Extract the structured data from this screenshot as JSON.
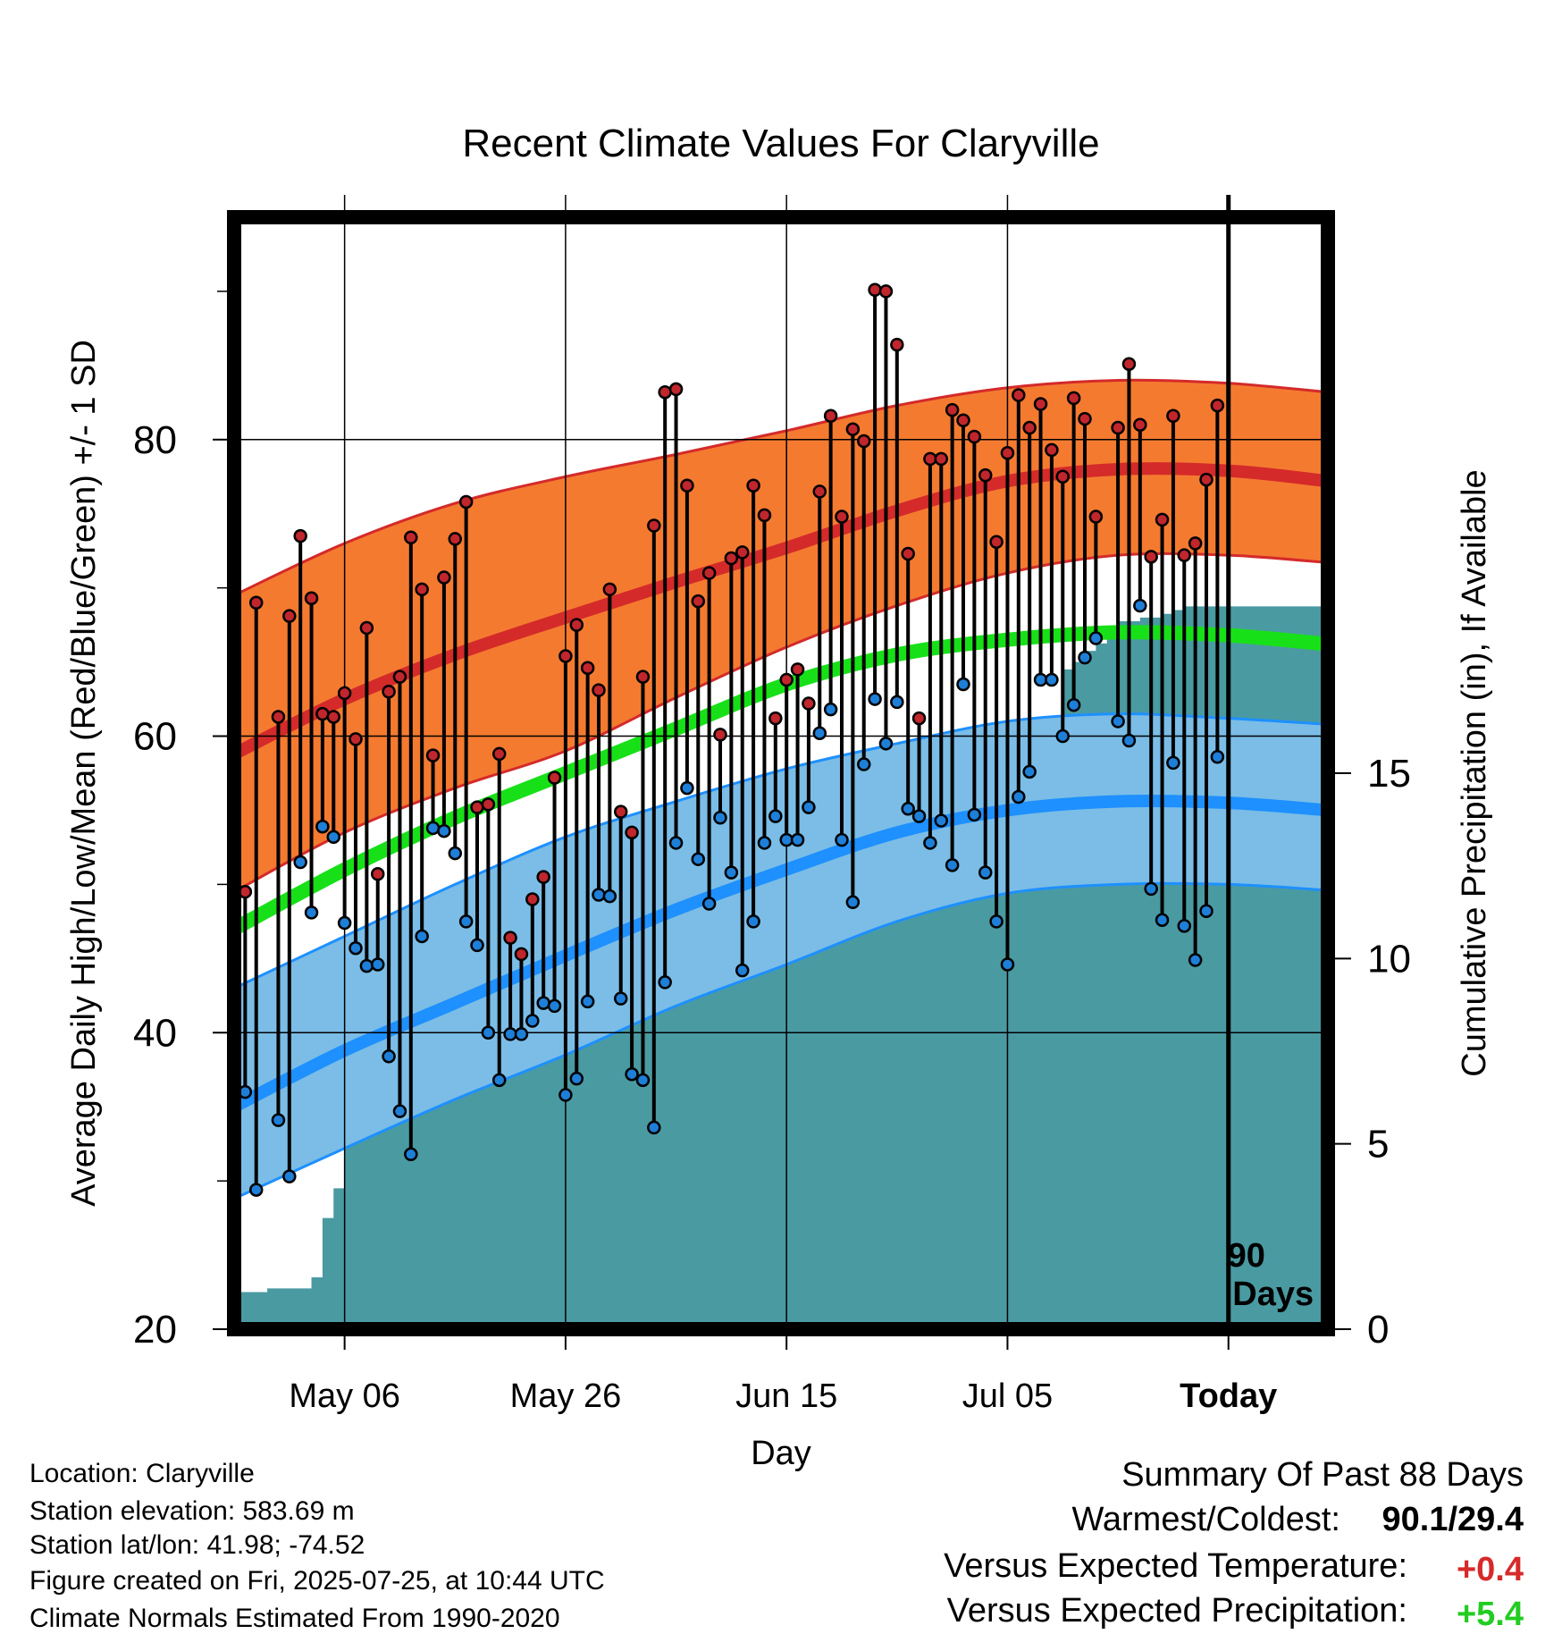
{
  "chart_data": {
    "type": "line",
    "title": "Recent Climate Values For Claryville",
    "ylabel_left": "Average Daily High/Low/Mean (Red/Blue/Green) +/- 1 SD",
    "ylabel_right": "Cumulative Precipitation (in), If Available",
    "xlabel": "Day",
    "x_tick_labels": [
      "May 06",
      "May 26",
      "Jun 15",
      "Jul 05",
      "Today"
    ],
    "x_tick_days": [
      10,
      30,
      50,
      70,
      90
    ],
    "x_range_days": [
      0,
      99
    ],
    "ylim_left": [
      20,
      95
    ],
    "y_ticks_left": [
      20,
      40,
      60,
      80
    ],
    "ylim_right": [
      0,
      30
    ],
    "y_ticks_right": [
      0,
      5,
      10,
      15
    ],
    "today_marker_label": [
      "90",
      "Days"
    ],
    "colors": {
      "high_band": "#f47a30",
      "high_mean": "#d42a2a",
      "mean": "#18e018",
      "low_band": "#7bbde6",
      "low_mean": "#1e90ff",
      "precip": "#4a9aa2",
      "high_dot": "#c0262c",
      "low_dot": "#1e7fd8"
    },
    "normals": {
      "days": [
        0,
        10,
        20,
        30,
        40,
        50,
        60,
        70,
        80,
        90,
        99
      ],
      "high_upper": [
        69.5,
        73.0,
        75.7,
        77.5,
        79.0,
        80.6,
        82.3,
        83.5,
        84.0,
        83.8,
        83.2
      ],
      "high_mean": [
        58.8,
        62.5,
        65.5,
        68.0,
        70.4,
        72.7,
        75.2,
        77.2,
        78.0,
        77.9,
        77.2
      ],
      "high_lower": [
        49.5,
        53.5,
        56.5,
        59.0,
        62.6,
        66.0,
        68.8,
        71.0,
        72.2,
        72.2,
        71.7
      ],
      "mean": [
        47.0,
        51.0,
        54.5,
        57.5,
        60.5,
        63.5,
        65.5,
        66.5,
        67.0,
        66.8,
        66.2
      ],
      "low_upper": [
        43.0,
        46.5,
        50.0,
        53.2,
        55.6,
        57.8,
        59.5,
        61.0,
        61.5,
        61.2,
        60.8
      ],
      "low_mean": [
        35.0,
        38.8,
        42.0,
        45.2,
        48.3,
        51.0,
        53.5,
        55.0,
        55.6,
        55.5,
        55.0
      ],
      "low_lower": [
        28.8,
        32.2,
        35.5,
        38.5,
        41.8,
        44.6,
        47.5,
        49.4,
        50.0,
        50.0,
        49.6
      ]
    },
    "series": [
      {
        "name": "Daily High",
        "days": [
          0,
          1,
          2,
          4,
          5,
          6,
          7,
          8,
          9,
          10,
          11,
          12,
          13,
          14,
          15,
          16,
          17,
          18,
          19,
          20,
          21,
          22,
          23,
          24,
          25,
          26,
          27,
          28,
          29,
          30,
          31,
          32,
          33,
          34,
          35,
          36,
          37,
          38,
          39,
          40,
          41,
          42,
          43,
          44,
          45,
          46,
          47,
          48,
          49,
          50,
          51,
          52,
          53,
          54,
          55,
          56,
          57,
          58,
          59,
          60,
          61,
          62,
          63,
          64,
          65,
          66,
          67,
          68,
          69,
          70,
          71,
          72,
          73,
          74,
          75,
          76,
          77,
          78,
          79,
          80,
          81,
          82,
          83,
          84,
          85,
          86,
          87,
          88,
          89
        ],
        "values": [
          66.0,
          49.5,
          69.0,
          61.3,
          68.1,
          73.5,
          69.3,
          61.5,
          61.3,
          62.9,
          59.8,
          67.3,
          50.7,
          63.0,
          64.0,
          73.4,
          69.9,
          58.7,
          70.7,
          73.3,
          75.8,
          55.2,
          55.4,
          58.8,
          46.4,
          45.3,
          49.0,
          50.5,
          57.2,
          65.4,
          67.5,
          64.6,
          63.1,
          69.9,
          54.9,
          53.5,
          64.0,
          74.2,
          83.2,
          83.4,
          76.9,
          69.1,
          71.0,
          60.1,
          72.0,
          72.4,
          76.9,
          74.9,
          61.2,
          63.8,
          64.5,
          62.2,
          76.5,
          81.6,
          74.8,
          80.7,
          79.9,
          90.1,
          90.0,
          86.4,
          72.3,
          61.2,
          78.7,
          78.7,
          82.0,
          81.3,
          80.2,
          77.6,
          73.1,
          79.1,
          83.0,
          80.8,
          82.4,
          79.3,
          77.5,
          82.8,
          81.4,
          74.8,
          null,
          80.8,
          85.1,
          81.0,
          72.1,
          74.6,
          81.6,
          72.2,
          73.0,
          77.3,
          82.3
        ]
      },
      {
        "name": "Daily Low",
        "days": [
          0,
          1,
          2,
          4,
          5,
          6,
          7,
          8,
          9,
          10,
          11,
          12,
          13,
          14,
          15,
          16,
          17,
          18,
          19,
          20,
          21,
          22,
          23,
          24,
          25,
          26,
          27,
          28,
          29,
          30,
          31,
          32,
          33,
          34,
          35,
          36,
          37,
          38,
          39,
          40,
          41,
          42,
          43,
          44,
          45,
          46,
          47,
          48,
          49,
          50,
          51,
          52,
          53,
          54,
          55,
          56,
          57,
          58,
          59,
          60,
          61,
          62,
          63,
          64,
          65,
          66,
          67,
          68,
          69,
          70,
          71,
          72,
          73,
          74,
          75,
          76,
          77,
          78,
          79,
          80,
          81,
          82,
          83,
          84,
          85,
          86,
          87,
          88,
          89
        ],
        "values": [
          39.8,
          36.0,
          29.4,
          34.1,
          30.3,
          51.5,
          48.1,
          53.9,
          53.2,
          47.4,
          45.7,
          44.5,
          44.6,
          38.4,
          34.7,
          31.8,
          46.5,
          53.8,
          53.6,
          52.1,
          47.5,
          45.9,
          40.0,
          36.8,
          39.9,
          39.9,
          40.8,
          42.0,
          41.8,
          35.8,
          36.9,
          42.1,
          49.3,
          49.2,
          42.3,
          37.2,
          36.8,
          33.6,
          43.4,
          52.8,
          56.5,
          51.7,
          48.7,
          54.5,
          50.8,
          44.2,
          47.5,
          52.8,
          54.6,
          53.0,
          53.0,
          55.2,
          60.2,
          61.8,
          53.0,
          48.8,
          58.1,
          62.5,
          59.5,
          62.3,
          55.1,
          54.6,
          52.8,
          54.3,
          51.3,
          63.5,
          54.7,
          50.8,
          47.5,
          44.6,
          55.9,
          57.6,
          63.8,
          63.8,
          60.0,
          62.1,
          65.3,
          66.6,
          null,
          61.0,
          59.7,
          68.8,
          49.7,
          47.6,
          58.2,
          47.2,
          44.9,
          48.2,
          58.6
        ]
      },
      {
        "name": "Cumulative Precipitation",
        "days": [
          0,
          1,
          2,
          3,
          4,
          5,
          6,
          7,
          8,
          9,
          10,
          11,
          12,
          13,
          14,
          15,
          16,
          17,
          18,
          19,
          20,
          21,
          22,
          23,
          24,
          25,
          26,
          27,
          28,
          29,
          30,
          31,
          32,
          33,
          34,
          35,
          36,
          37,
          38,
          39,
          40,
          41,
          42,
          43,
          44,
          45,
          46,
          47,
          48,
          49,
          50,
          51,
          52,
          53,
          54,
          55,
          56,
          57,
          58,
          59,
          60,
          61,
          62,
          63,
          64,
          65,
          66,
          67,
          68,
          69,
          70,
          71,
          72,
          73,
          74,
          75,
          76,
          77,
          78,
          79,
          80,
          81,
          82,
          83,
          84,
          85,
          86,
          87,
          88,
          89,
          90,
          91,
          92,
          93,
          94,
          95,
          96,
          97,
          98,
          99
        ],
        "values": [
          1.0,
          1.0,
          1.0,
          1.1,
          1.1,
          1.1,
          1.1,
          1.4,
          3.0,
          3.8,
          5.0,
          5.1,
          5.6,
          7.1,
          7.2,
          7.2,
          7.2,
          7.5,
          7.9,
          7.9,
          7.9,
          8.1,
          8.2,
          8.4,
          8.4,
          8.8,
          9.1,
          9.3,
          9.6,
          9.6,
          9.6,
          9.6,
          9.6,
          9.6,
          9.6,
          11.4,
          11.6,
          11.6,
          11.6,
          11.6,
          11.7,
          12.1,
          12.3,
          12.6,
          12.8,
          12.8,
          12.8,
          12.8,
          13.2,
          13.2,
          13.6,
          13.8,
          14.1,
          14.7,
          14.7,
          14.7,
          14.7,
          14.8,
          14.8,
          14.9,
          14.9,
          14.9,
          14.9,
          14.9,
          15.0,
          15.0,
          15.1,
          15.1,
          15.1,
          15.2,
          15.2,
          15.2,
          15.2,
          15.2,
          15.4,
          17.8,
          18.0,
          18.3,
          18.5,
          18.8,
          19.1,
          19.1,
          19.2,
          19.2,
          19.3,
          19.4,
          19.5,
          19.5,
          19.5,
          19.5,
          19.5,
          19.5,
          19.5,
          19.5,
          19.5,
          19.5,
          19.5,
          19.5,
          19.5,
          19.5
        ]
      }
    ]
  },
  "footer_left": {
    "location": "Location: Claryville",
    "elevation": "Station elevation: 583.69 m",
    "latlon": "Station lat/lon: 41.98; -74.52",
    "created": "Figure created on Fri, 2025-07-25, at 10:44 UTC",
    "normals": "Climate Normals Estimated From 1990-2020"
  },
  "summary": {
    "heading": "Summary Of Past 88 Days",
    "warm_cold_label": "Warmest/Coldest:",
    "warm_cold_value": "90.1/29.4",
    "temp_label": "Versus Expected Temperature:",
    "temp_value": "+0.4",
    "temp_color": "#d62a2a",
    "precip_label": "Versus Expected Precipitation:",
    "precip_value": "+5.4",
    "precip_color": "#22cc22"
  }
}
